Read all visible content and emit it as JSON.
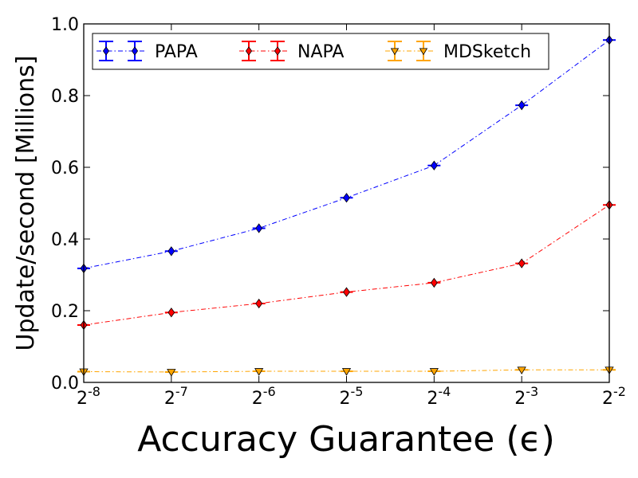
{
  "chart_data": {
    "type": "line",
    "title": "",
    "xlabel": "Accuracy Guarantee (ϵ)",
    "ylabel": "Update/second [Millions]",
    "x_base": "2",
    "x_exponents": [
      -8,
      -7,
      -6,
      -5,
      -4,
      -3,
      -2
    ],
    "x_tick_labels": [
      "-8",
      "-7",
      "-6",
      "-5",
      "-4",
      "-3",
      "-2"
    ],
    "ylim": [
      0.0,
      1.0
    ],
    "y_ticks": [
      "0.0",
      "0.2",
      "0.4",
      "0.6",
      "0.8",
      "1.0"
    ],
    "grid": false,
    "legend_position": "top",
    "series": [
      {
        "name": "PAPA",
        "color": "#0000ff",
        "marker": "diamond",
        "line_style": "dash-dot",
        "values": [
          0.318,
          0.366,
          0.43,
          0.515,
          0.605,
          0.773,
          0.955
        ]
      },
      {
        "name": "NAPA",
        "color": "#ff0000",
        "marker": "diamond",
        "line_style": "dash-dot",
        "values": [
          0.16,
          0.195,
          0.22,
          0.252,
          0.278,
          0.332,
          0.495
        ]
      },
      {
        "name": "MDSketch",
        "color": "#ffa500",
        "marker": "triangle-down",
        "line_style": "dash-dot",
        "values": [
          0.03,
          0.029,
          0.031,
          0.031,
          0.031,
          0.035,
          0.035
        ]
      }
    ]
  }
}
